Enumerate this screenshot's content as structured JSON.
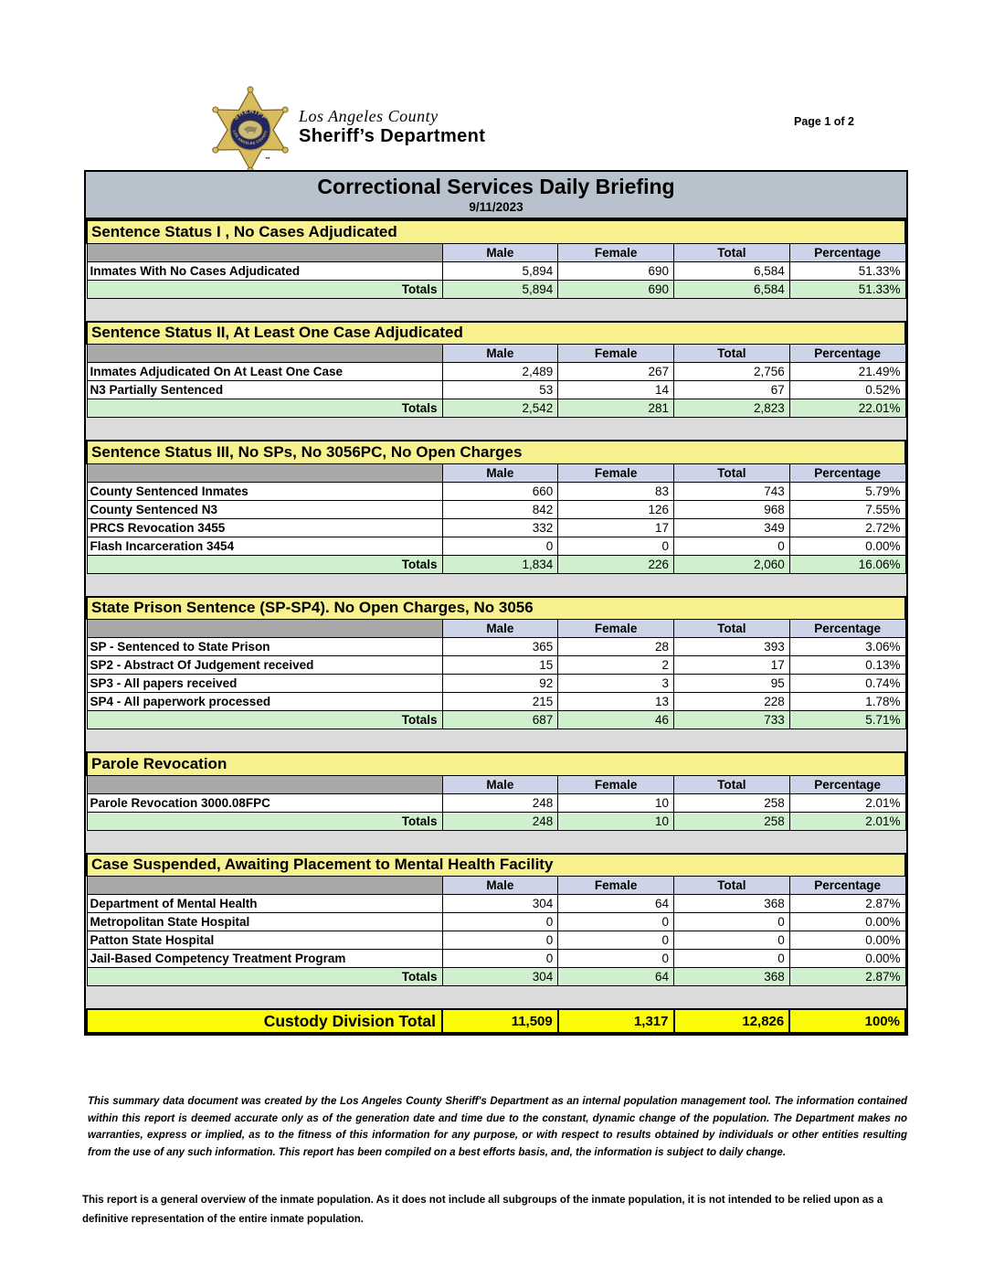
{
  "page": {
    "page_label": "Page 1 of 2",
    "logo": {
      "line1": "Los Angeles County",
      "line2": "Sheriff’s Department",
      "badge_top_text": "SHERIFF",
      "badge_bottom_text": "LOS ANGELES COUNTY",
      "trademark": "™"
    },
    "title": "Correctional Services Daily Briefing",
    "date": "9/11/2023"
  },
  "columns": [
    "Male",
    "Female",
    "Total",
    "Percentage"
  ],
  "totals_label": "Totals",
  "sections": [
    {
      "header": "Sentence Status I , No Cases Adjudicated",
      "rows": [
        {
          "label": "Inmates With No Cases Adjudicated",
          "male": "5,894",
          "female": "690",
          "total": "6,584",
          "percentage": "51.33%"
        }
      ],
      "totals": {
        "male": "5,894",
        "female": "690",
        "total": "6,584",
        "percentage": "51.33%"
      }
    },
    {
      "header": "Sentence Status II, At Least One Case Adjudicated",
      "rows": [
        {
          "label": "Inmates Adjudicated On At Least One Case",
          "male": "2,489",
          "female": "267",
          "total": "2,756",
          "percentage": "21.49%"
        },
        {
          "label": "N3 Partially Sentenced",
          "male": "53",
          "female": "14",
          "total": "67",
          "percentage": "0.52%"
        }
      ],
      "totals": {
        "male": "2,542",
        "female": "281",
        "total": "2,823",
        "percentage": "22.01%"
      }
    },
    {
      "header": "Sentence Status III, No SPs, No 3056PC, No Open Charges",
      "rows": [
        {
          "label": "County Sentenced Inmates",
          "male": "660",
          "female": "83",
          "total": "743",
          "percentage": "5.79%"
        },
        {
          "label": "County Sentenced N3",
          "male": "842",
          "female": "126",
          "total": "968",
          "percentage": "7.55%"
        },
        {
          "label": "PRCS Revocation 3455",
          "male": "332",
          "female": "17",
          "total": "349",
          "percentage": "2.72%"
        },
        {
          "label": "Flash Incarceration 3454",
          "male": "0",
          "female": "0",
          "total": "0",
          "percentage": "0.00%"
        }
      ],
      "totals": {
        "male": "1,834",
        "female": "226",
        "total": "2,060",
        "percentage": "16.06%"
      }
    },
    {
      "header": "State Prison Sentence (SP-SP4). No Open Charges, No 3056",
      "rows": [
        {
          "label": "SP - Sentenced to State Prison",
          "male": "365",
          "female": "28",
          "total": "393",
          "percentage": "3.06%"
        },
        {
          "label": "SP2 - Abstract Of Judgement received",
          "male": "15",
          "female": "2",
          "total": "17",
          "percentage": "0.13%"
        },
        {
          "label": "SP3 - All papers received",
          "male": "92",
          "female": "3",
          "total": "95",
          "percentage": "0.74%"
        },
        {
          "label": "SP4 - All paperwork processed",
          "male": "215",
          "female": "13",
          "total": "228",
          "percentage": "1.78%"
        }
      ],
      "totals": {
        "male": "687",
        "female": "46",
        "total": "733",
        "percentage": "5.71%"
      }
    },
    {
      "header": "Parole Revocation",
      "rows": [
        {
          "label": "Parole Revocation 3000.08FPC",
          "male": "248",
          "female": "10",
          "total": "258",
          "percentage": "2.01%"
        }
      ],
      "totals": {
        "male": "248",
        "female": "10",
        "total": "258",
        "percentage": "2.01%"
      }
    },
    {
      "header": "Case Suspended, Awaiting Placement to Mental Health Facility",
      "rows": [
        {
          "label": "Department of Mental Health",
          "male": "304",
          "female": "64",
          "total": "368",
          "percentage": "2.87%"
        },
        {
          "label": "Metropolitan State Hospital",
          "male": "0",
          "female": "0",
          "total": "0",
          "percentage": "0.00%"
        },
        {
          "label": "Patton State Hospital",
          "male": "0",
          "female": "0",
          "total": "0",
          "percentage": "0.00%"
        },
        {
          "label": "Jail-Based Competency Treatment Program",
          "male": "0",
          "female": "0",
          "total": "0",
          "percentage": "0.00%"
        }
      ],
      "totals": {
        "male": "304",
        "female": "64",
        "total": "368",
        "percentage": "2.87%"
      }
    }
  ],
  "grand_total": {
    "label": "Custody Division Total",
    "male": "11,509",
    "female": "1,317",
    "total": "12,826",
    "percentage": "100%"
  },
  "footer": {
    "disclaimer": "This summary data document was created by the Los Angeles County Sheriff's Department as an internal population management tool.  The information contained within this report is deemed accurate only as of the generation date and time due to the constant, dynamic change of the population.  The Department makes no warranties, express or implied, as to the fitness of this information for any purpose, or with respect to results obtained by individuals or other entities resulting from the use of any such information.  This report has been compiled on a best efforts basis, and, the information is subject to daily change.",
    "note": "This report is a general overview of the inmate population.  As it does not include all subgroups of the inmate population, it is not intended to be relied upon as a definitive representation of the entire inmate population."
  },
  "colors": {
    "title_bar": "#B8C2CC",
    "section_header_yellow": "#F7F28F",
    "column_header_lavender": "#CDD4E8",
    "header_spacer_gray": "#A8A8A8",
    "totals_green": "#CFEFCF",
    "grand_total_yellow": "#FBFB09",
    "gap_gray": "#DBDBDB",
    "badge_gold": "#D9BC5E",
    "badge_navy": "#23275E"
  }
}
